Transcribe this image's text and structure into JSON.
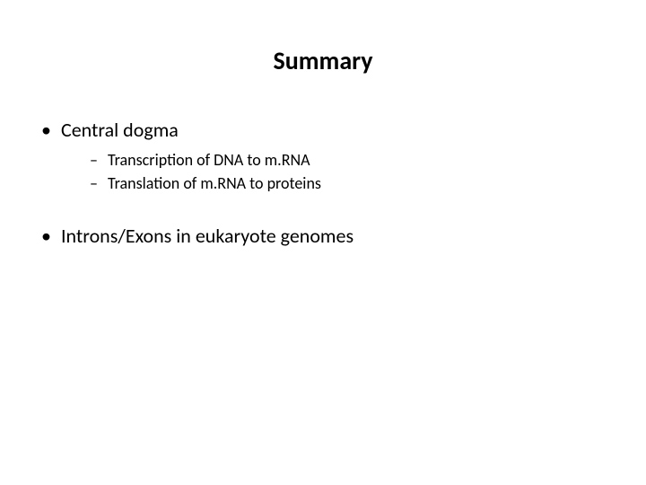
{
  "slide": {
    "title": "Summary",
    "title_fontsize": 28,
    "title_fontweight": 700,
    "background_color": "#ffffff",
    "text_color": "#000000",
    "bullets": [
      {
        "text": "Central dogma",
        "fontsize": 22,
        "marker": "•",
        "children": [
          {
            "text": "Transcription of DNA to m.RNA",
            "fontsize": 18,
            "marker": "–"
          },
          {
            "text": "Translation of m.RNA to proteins",
            "fontsize": 18,
            "marker": "–"
          }
        ]
      },
      {
        "text": "Introns/Exons in eukaryote genomes",
        "fontsize": 22,
        "marker": "•",
        "children": []
      }
    ]
  }
}
